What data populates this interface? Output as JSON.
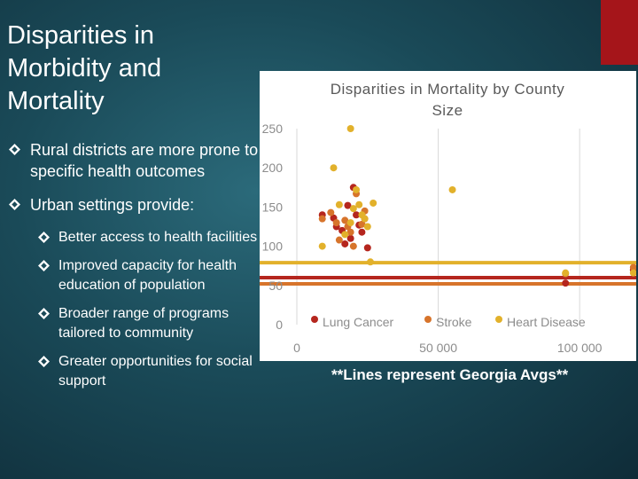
{
  "slide": {
    "title": "Disparities in Morbidity and Mortality",
    "bullets": [
      {
        "text": "Rural districts are more prone to specific health outcomes"
      },
      {
        "text": "Urban settings provide:",
        "sub": [
          "Better access to health facilities",
          "Improved capacity for health education of population",
          "Broader range of programs tailored to community",
          "Greater opportunities for social support"
        ]
      }
    ],
    "footnote": "**Lines represent Georgia Avgs**"
  },
  "colors": {
    "lung_cancer": "#b5261e",
    "stroke": "#d7742b",
    "heart_disease": "#e2b12b",
    "accent": "#a5151a",
    "gridline": "#d9d9d9",
    "axis_text": "#8c8c8c"
  },
  "chart_data": {
    "type": "scatter",
    "title": "Disparities in Mortality by County Size",
    "xlabel": "",
    "ylabel": "",
    "xlim": [
      0,
      120000
    ],
    "ylim": [
      0,
      250
    ],
    "xticks": [
      "0",
      "50 000",
      "100 000"
    ],
    "xtick_values": [
      0,
      50000,
      100000
    ],
    "yticks": [
      "0",
      "50",
      "100",
      "150",
      "200",
      "250"
    ],
    "ytick_values": [
      0,
      50,
      100,
      150,
      200,
      250
    ],
    "grid": true,
    "legend_position": "bottom",
    "series": [
      {
        "name": "Lung Cancer",
        "color": "#b5261e",
        "average": 60,
        "points": [
          [
            9000,
            140
          ],
          [
            13000,
            136
          ],
          [
            14000,
            125
          ],
          [
            16000,
            120
          ],
          [
            17000,
            103
          ],
          [
            18000,
            152
          ],
          [
            19000,
            110
          ],
          [
            20000,
            175
          ],
          [
            21000,
            140
          ],
          [
            22000,
            127
          ],
          [
            23000,
            118
          ],
          [
            24000,
            135
          ],
          [
            25000,
            98
          ],
          [
            95000,
            53
          ],
          [
            119000,
            70
          ]
        ]
      },
      {
        "name": "Stroke",
        "color": "#d7742b",
        "average": 52,
        "points": [
          [
            9000,
            135
          ],
          [
            12000,
            143
          ],
          [
            14000,
            130
          ],
          [
            15000,
            108
          ],
          [
            17000,
            133
          ],
          [
            18000,
            125
          ],
          [
            19000,
            118
          ],
          [
            20000,
            100
          ],
          [
            21000,
            167
          ],
          [
            23000,
            128
          ],
          [
            24000,
            145
          ],
          [
            95000,
            65
          ],
          [
            119000,
            73
          ]
        ]
      },
      {
        "name": "Heart Disease",
        "color": "#e2b12b",
        "average": 79,
        "points": [
          [
            9000,
            100
          ],
          [
            13000,
            200
          ],
          [
            15000,
            153
          ],
          [
            17000,
            115
          ],
          [
            19000,
            130
          ],
          [
            20000,
            148
          ],
          [
            21000,
            172
          ],
          [
            22000,
            153
          ],
          [
            23000,
            140
          ],
          [
            24000,
            135
          ],
          [
            25000,
            125
          ],
          [
            26000,
            80
          ],
          [
            27000,
            155
          ],
          [
            55000,
            172
          ],
          [
            19000,
            250
          ],
          [
            95000,
            66
          ],
          [
            119000,
            66
          ]
        ]
      }
    ]
  }
}
